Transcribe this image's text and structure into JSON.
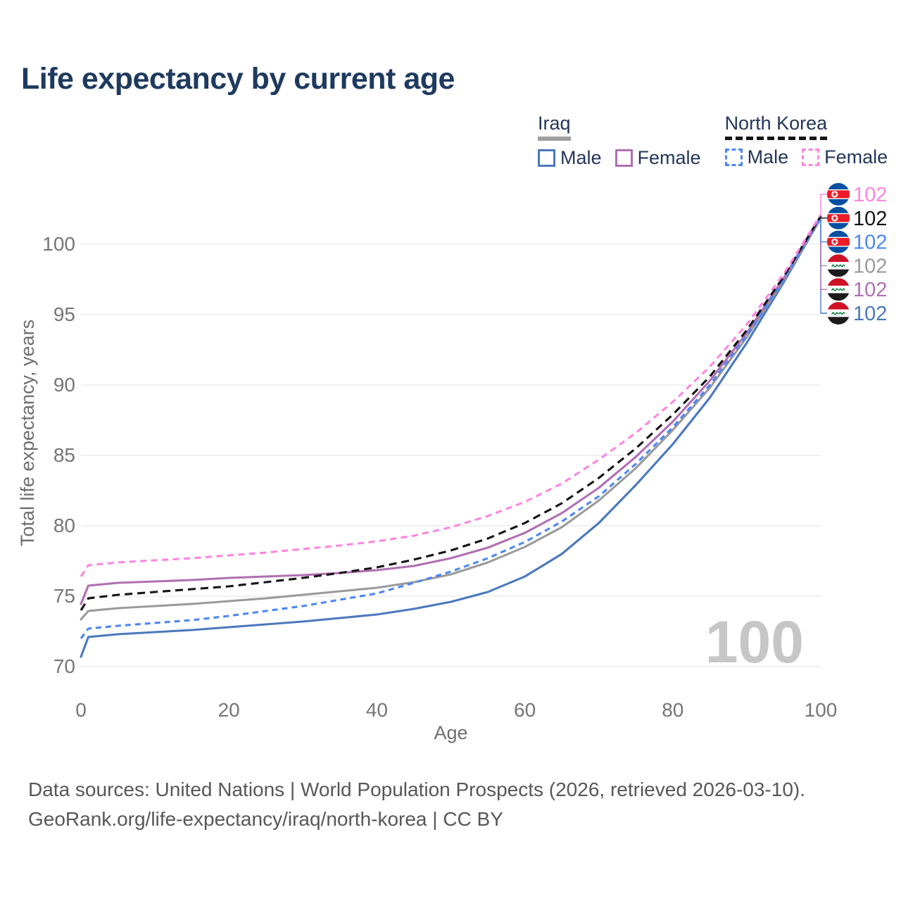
{
  "title": "Life expectancy by current age",
  "legend": {
    "groups": [
      {
        "name": "Iraq",
        "items": [
          {
            "label": "Male"
          },
          {
            "label": "Female"
          }
        ]
      },
      {
        "name": "North Korea",
        "items": [
          {
            "label": "Male"
          },
          {
            "label": "Female"
          }
        ]
      }
    ]
  },
  "chart_data": {
    "type": "line",
    "title": "Life expectancy by current age",
    "xlabel": "Age",
    "ylabel": "Total life expectancy, years",
    "xticks": [
      0,
      20,
      40,
      60,
      80,
      100
    ],
    "yticks": [
      70,
      75,
      80,
      85,
      90,
      95,
      100
    ],
    "xlim": [
      0,
      100
    ],
    "ylim": [
      69,
      104
    ],
    "grid": "horizontal-only",
    "age_counter_watermark": "100",
    "x": [
      0,
      1,
      5,
      10,
      15,
      20,
      25,
      30,
      35,
      40,
      45,
      50,
      55,
      60,
      65,
      70,
      75,
      80,
      85,
      90,
      95,
      100
    ],
    "series": [
      {
        "id": "iraq-male",
        "country": "Iraq",
        "sex": "Male",
        "color": "#4a79bc",
        "dash": "",
        "end_label": "102",
        "label_slot": 5,
        "values": [
          70.7,
          72.1,
          72.3,
          72.45,
          72.6,
          72.8,
          73.0,
          73.2,
          73.45,
          73.7,
          74.1,
          74.6,
          75.3,
          76.4,
          78.0,
          80.2,
          82.9,
          85.8,
          89.1,
          93.0,
          97.3,
          101.85
        ]
      },
      {
        "id": "iraq-all",
        "country": "Iraq",
        "sex": "All",
        "color": "#9a9a9a",
        "dash": "",
        "end_label": "102",
        "label_slot": 3,
        "values": [
          73.35,
          73.95,
          74.15,
          74.3,
          74.45,
          74.65,
          74.85,
          75.1,
          75.35,
          75.6,
          76.0,
          76.55,
          77.4,
          78.5,
          79.9,
          81.8,
          84.1,
          86.8,
          89.8,
          93.4,
          97.45,
          101.85
        ]
      },
      {
        "id": "iraq-female",
        "country": "Iraq",
        "sex": "Female",
        "color": "#b06fb3",
        "dash": "",
        "end_label": "102",
        "label_slot": 4,
        "values": [
          74.45,
          75.75,
          75.95,
          76.05,
          76.15,
          76.3,
          76.4,
          76.5,
          76.65,
          76.85,
          77.15,
          77.7,
          78.45,
          79.5,
          80.9,
          82.7,
          84.9,
          87.4,
          90.3,
          93.7,
          97.6,
          101.95
        ]
      },
      {
        "id": "north-korea-male",
        "country": "North Korea",
        "sex": "Male",
        "color": "#4d87f0",
        "dash": "8 6",
        "end_label": "102",
        "label_slot": 2,
        "values": [
          72.0,
          72.7,
          72.9,
          73.1,
          73.3,
          73.6,
          73.95,
          74.3,
          74.75,
          75.2,
          75.95,
          76.75,
          77.7,
          78.85,
          80.3,
          82.1,
          84.4,
          87.0,
          90.0,
          93.5,
          97.5,
          101.9
        ]
      },
      {
        "id": "north-korea-all",
        "country": "North Korea",
        "sex": "All",
        "color": "#141414",
        "dash": "11 7",
        "end_label": "102",
        "label_slot": 1,
        "values": [
          74.0,
          74.85,
          75.1,
          75.3,
          75.5,
          75.7,
          76.0,
          76.3,
          76.65,
          77.05,
          77.6,
          78.25,
          79.1,
          80.2,
          81.6,
          83.4,
          85.5,
          87.9,
          90.6,
          93.9,
          97.7,
          102.0
        ]
      },
      {
        "id": "north-korea-female",
        "country": "North Korea",
        "sex": "Female",
        "color": "#ff85e2",
        "dash": "9 6.5",
        "end_label": "102",
        "label_slot": 0,
        "values": [
          76.4,
          77.2,
          77.4,
          77.55,
          77.7,
          77.9,
          78.1,
          78.35,
          78.6,
          78.9,
          79.3,
          79.9,
          80.7,
          81.7,
          83.0,
          84.7,
          86.6,
          88.8,
          91.3,
          94.3,
          97.9,
          102.1
        ]
      }
    ]
  },
  "footer": {
    "line1": "Data sources: United Nations | World Population Prospects (2026, retrieved 2026-03-10).",
    "line2": "GeoRank.org/life-expectancy/iraq/north-korea | CC BY"
  },
  "colors": {
    "title": "#1e3a5f",
    "legend_text": "#24365a",
    "tick_label": "#757575",
    "axis_title": "#6e6e6e",
    "gridline": "#ececec",
    "watermark": "#c6c6c6",
    "footer_text": "#575757",
    "iraq_underline": "#9e9e9e",
    "nk_underline": "#141414",
    "nk_flag_blue": "#024FA2",
    "nk_flag_red": "#ED1C27",
    "iraq_flag_red": "#CE1126",
    "iraq_flag_green": "#0a7a3d"
  }
}
